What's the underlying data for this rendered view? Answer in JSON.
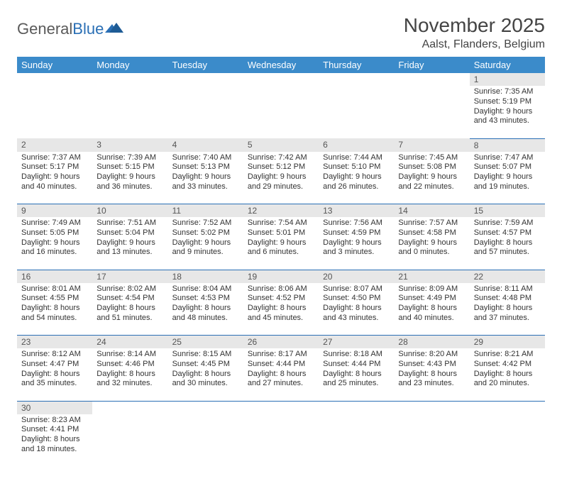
{
  "logo": {
    "text1": "General",
    "text2": "Blue"
  },
  "title": "November 2025",
  "location": "Aalst, Flanders, Belgium",
  "colors": {
    "header_bg": "#3b8bca",
    "header_text": "#ffffff",
    "daynum_bg": "#e7e7e7",
    "divider": "#2a6fb5",
    "text": "#333333",
    "logo_gray": "#5a5a5a",
    "logo_blue": "#2a6fb5"
  },
  "weekdays": [
    "Sunday",
    "Monday",
    "Tuesday",
    "Wednesday",
    "Thursday",
    "Friday",
    "Saturday"
  ],
  "weeks": [
    [
      null,
      null,
      null,
      null,
      null,
      null,
      {
        "n": "1",
        "sr": "Sunrise: 7:35 AM",
        "ss": "Sunset: 5:19 PM",
        "d1": "Daylight: 9 hours",
        "d2": "and 43 minutes."
      }
    ],
    [
      {
        "n": "2",
        "sr": "Sunrise: 7:37 AM",
        "ss": "Sunset: 5:17 PM",
        "d1": "Daylight: 9 hours",
        "d2": "and 40 minutes."
      },
      {
        "n": "3",
        "sr": "Sunrise: 7:39 AM",
        "ss": "Sunset: 5:15 PM",
        "d1": "Daylight: 9 hours",
        "d2": "and 36 minutes."
      },
      {
        "n": "4",
        "sr": "Sunrise: 7:40 AM",
        "ss": "Sunset: 5:13 PM",
        "d1": "Daylight: 9 hours",
        "d2": "and 33 minutes."
      },
      {
        "n": "5",
        "sr": "Sunrise: 7:42 AM",
        "ss": "Sunset: 5:12 PM",
        "d1": "Daylight: 9 hours",
        "d2": "and 29 minutes."
      },
      {
        "n": "6",
        "sr": "Sunrise: 7:44 AM",
        "ss": "Sunset: 5:10 PM",
        "d1": "Daylight: 9 hours",
        "d2": "and 26 minutes."
      },
      {
        "n": "7",
        "sr": "Sunrise: 7:45 AM",
        "ss": "Sunset: 5:08 PM",
        "d1": "Daylight: 9 hours",
        "d2": "and 22 minutes."
      },
      {
        "n": "8",
        "sr": "Sunrise: 7:47 AM",
        "ss": "Sunset: 5:07 PM",
        "d1": "Daylight: 9 hours",
        "d2": "and 19 minutes."
      }
    ],
    [
      {
        "n": "9",
        "sr": "Sunrise: 7:49 AM",
        "ss": "Sunset: 5:05 PM",
        "d1": "Daylight: 9 hours",
        "d2": "and 16 minutes."
      },
      {
        "n": "10",
        "sr": "Sunrise: 7:51 AM",
        "ss": "Sunset: 5:04 PM",
        "d1": "Daylight: 9 hours",
        "d2": "and 13 minutes."
      },
      {
        "n": "11",
        "sr": "Sunrise: 7:52 AM",
        "ss": "Sunset: 5:02 PM",
        "d1": "Daylight: 9 hours",
        "d2": "and 9 minutes."
      },
      {
        "n": "12",
        "sr": "Sunrise: 7:54 AM",
        "ss": "Sunset: 5:01 PM",
        "d1": "Daylight: 9 hours",
        "d2": "and 6 minutes."
      },
      {
        "n": "13",
        "sr": "Sunrise: 7:56 AM",
        "ss": "Sunset: 4:59 PM",
        "d1": "Daylight: 9 hours",
        "d2": "and 3 minutes."
      },
      {
        "n": "14",
        "sr": "Sunrise: 7:57 AM",
        "ss": "Sunset: 4:58 PM",
        "d1": "Daylight: 9 hours",
        "d2": "and 0 minutes."
      },
      {
        "n": "15",
        "sr": "Sunrise: 7:59 AM",
        "ss": "Sunset: 4:57 PM",
        "d1": "Daylight: 8 hours",
        "d2": "and 57 minutes."
      }
    ],
    [
      {
        "n": "16",
        "sr": "Sunrise: 8:01 AM",
        "ss": "Sunset: 4:55 PM",
        "d1": "Daylight: 8 hours",
        "d2": "and 54 minutes."
      },
      {
        "n": "17",
        "sr": "Sunrise: 8:02 AM",
        "ss": "Sunset: 4:54 PM",
        "d1": "Daylight: 8 hours",
        "d2": "and 51 minutes."
      },
      {
        "n": "18",
        "sr": "Sunrise: 8:04 AM",
        "ss": "Sunset: 4:53 PM",
        "d1": "Daylight: 8 hours",
        "d2": "and 48 minutes."
      },
      {
        "n": "19",
        "sr": "Sunrise: 8:06 AM",
        "ss": "Sunset: 4:52 PM",
        "d1": "Daylight: 8 hours",
        "d2": "and 45 minutes."
      },
      {
        "n": "20",
        "sr": "Sunrise: 8:07 AM",
        "ss": "Sunset: 4:50 PM",
        "d1": "Daylight: 8 hours",
        "d2": "and 43 minutes."
      },
      {
        "n": "21",
        "sr": "Sunrise: 8:09 AM",
        "ss": "Sunset: 4:49 PM",
        "d1": "Daylight: 8 hours",
        "d2": "and 40 minutes."
      },
      {
        "n": "22",
        "sr": "Sunrise: 8:11 AM",
        "ss": "Sunset: 4:48 PM",
        "d1": "Daylight: 8 hours",
        "d2": "and 37 minutes."
      }
    ],
    [
      {
        "n": "23",
        "sr": "Sunrise: 8:12 AM",
        "ss": "Sunset: 4:47 PM",
        "d1": "Daylight: 8 hours",
        "d2": "and 35 minutes."
      },
      {
        "n": "24",
        "sr": "Sunrise: 8:14 AM",
        "ss": "Sunset: 4:46 PM",
        "d1": "Daylight: 8 hours",
        "d2": "and 32 minutes."
      },
      {
        "n": "25",
        "sr": "Sunrise: 8:15 AM",
        "ss": "Sunset: 4:45 PM",
        "d1": "Daylight: 8 hours",
        "d2": "and 30 minutes."
      },
      {
        "n": "26",
        "sr": "Sunrise: 8:17 AM",
        "ss": "Sunset: 4:44 PM",
        "d1": "Daylight: 8 hours",
        "d2": "and 27 minutes."
      },
      {
        "n": "27",
        "sr": "Sunrise: 8:18 AM",
        "ss": "Sunset: 4:44 PM",
        "d1": "Daylight: 8 hours",
        "d2": "and 25 minutes."
      },
      {
        "n": "28",
        "sr": "Sunrise: 8:20 AM",
        "ss": "Sunset: 4:43 PM",
        "d1": "Daylight: 8 hours",
        "d2": "and 23 minutes."
      },
      {
        "n": "29",
        "sr": "Sunrise: 8:21 AM",
        "ss": "Sunset: 4:42 PM",
        "d1": "Daylight: 8 hours",
        "d2": "and 20 minutes."
      }
    ],
    [
      {
        "n": "30",
        "sr": "Sunrise: 8:23 AM",
        "ss": "Sunset: 4:41 PM",
        "d1": "Daylight: 8 hours",
        "d2": "and 18 minutes."
      },
      null,
      null,
      null,
      null,
      null,
      null
    ]
  ]
}
